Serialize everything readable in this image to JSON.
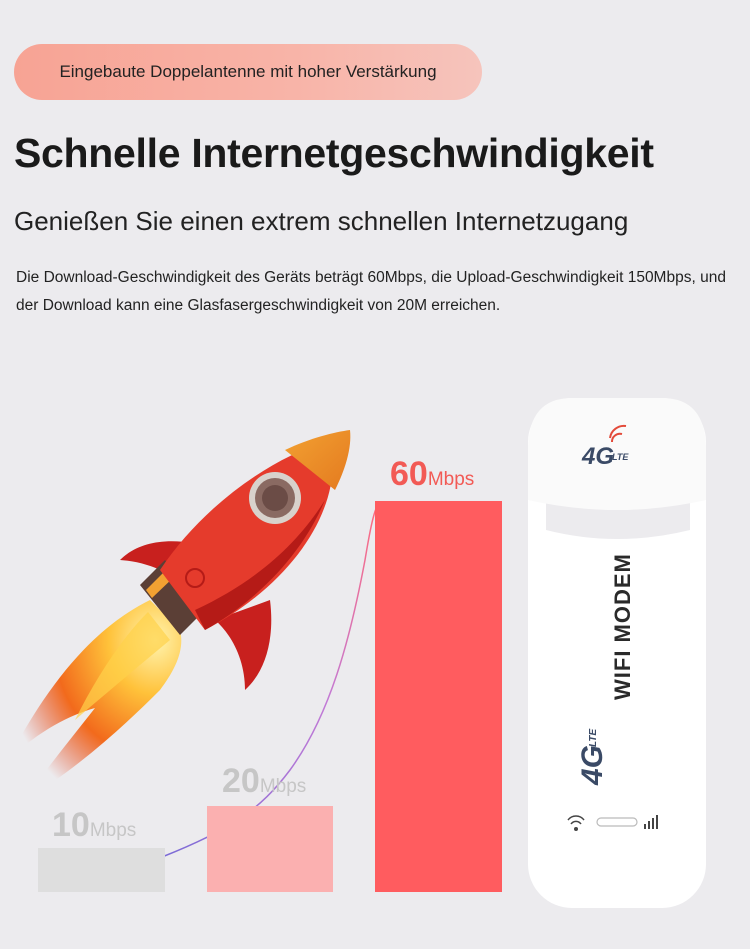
{
  "badge": "Eingebaute Doppelantenne mit hoher Verstärkung",
  "title": "Schnelle Internetgeschwindigkeit",
  "subtitle": "Genießen Sie einen extrem schnellen Internetzugang",
  "description": "Die Download-Geschwindigkeit des Geräts beträgt 60Mbps, die Upload-Geschwindigkeit 150Mbps, und der Download kann eine Glasfasergeschwindigkeit von 20M erreichen.",
  "speeds": [
    {
      "value": "10",
      "unit": "Mbps"
    },
    {
      "value": "20",
      "unit": "Mbps"
    },
    {
      "value": "60",
      "unit": "Mbps"
    }
  ],
  "device": {
    "cap_logo": "4G",
    "cap_logo_sub": "LTE",
    "body_logo": "4G",
    "body_logo_sub": "LTE",
    "label": "WIFI MODEM"
  },
  "colors": {
    "background": "#ecebee",
    "bar_10": "#dedede",
    "bar_20": "#fbb0b0",
    "bar_60": "#ff5c5f",
    "accent": "#f25a55"
  },
  "icons": [
    "rocket-icon",
    "flame-icon",
    "wifi-signal-icon",
    "signal-bars-icon"
  ]
}
